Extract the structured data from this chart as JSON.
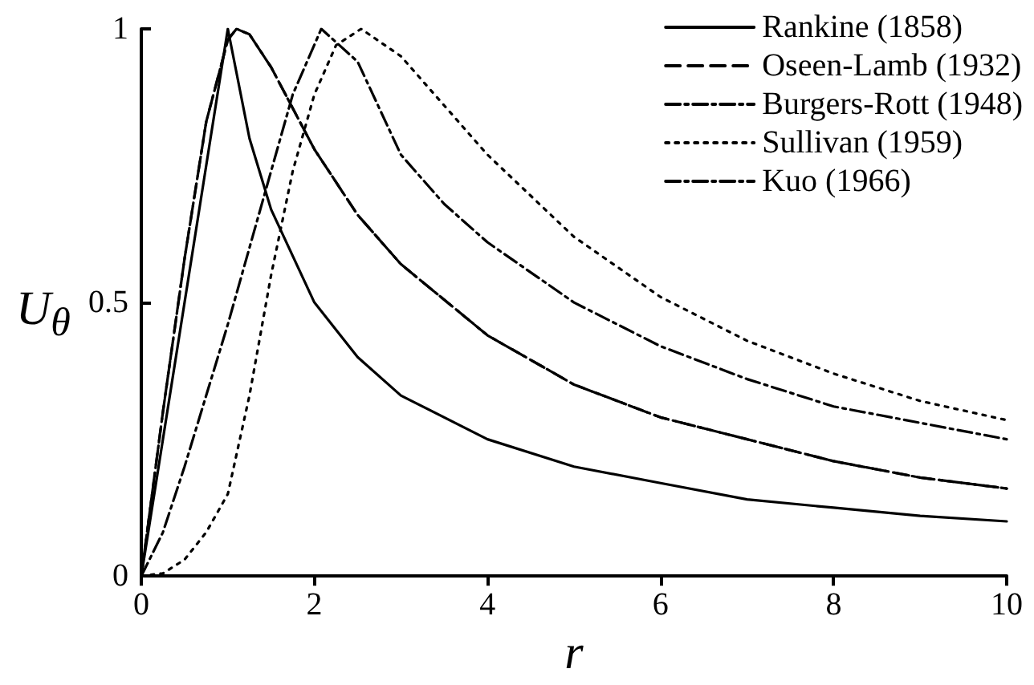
{
  "chart_data": {
    "type": "line",
    "xlabel": "r",
    "ylabel": "U$_{θ}$",
    "xlim": [
      0,
      10
    ],
    "xticks": [
      0,
      2,
      4,
      6,
      8,
      10
    ],
    "ylim": [
      0,
      1
    ],
    "yticks": [
      0,
      0.5,
      1
    ],
    "grid": false,
    "legend": "top right",
    "marker": "none",
    "series": [
      {
        "name": "Rankine (1858)",
        "color": "#000000",
        "line_style": "solid",
        "x": [
          0,
          1,
          1.25,
          1.5,
          2,
          2.5,
          3,
          4,
          5,
          6,
          7,
          8,
          9,
          10
        ],
        "values": [
          0,
          1,
          0.8,
          0.67,
          0.5,
          0.4,
          0.33,
          0.25,
          0.2,
          0.17,
          0.14,
          0.125,
          0.11,
          0.1
        ]
      },
      {
        "name": "Oseen-Lamb (1932)",
        "color": "#000000",
        "line_style": "dashed",
        "x": [
          0,
          0.25,
          0.5,
          0.75,
          1,
          1.1,
          1.25,
          1.5,
          2,
          2.5,
          3,
          4,
          5,
          6,
          7,
          8,
          9,
          10
        ],
        "values": [
          0,
          0.3,
          0.58,
          0.83,
          0.98,
          1,
          0.99,
          0.93,
          0.78,
          0.66,
          0.57,
          0.44,
          0.35,
          0.29,
          0.25,
          0.21,
          0.18,
          0.16
        ]
      },
      {
        "name": "Burgers-Rott (1948)",
        "color": "#000000",
        "line_style": "dashdot",
        "x": [
          0,
          0.25,
          0.5,
          0.75,
          1,
          1.1,
          1.25,
          1.5,
          2,
          2.5,
          3,
          4,
          5,
          6,
          7,
          8,
          9,
          10
        ],
        "values": [
          0,
          0.3,
          0.58,
          0.83,
          0.98,
          1,
          0.99,
          0.93,
          0.78,
          0.66,
          0.57,
          0.44,
          0.35,
          0.29,
          0.25,
          0.21,
          0.18,
          0.16
        ]
      },
      {
        "name": "Sullivan (1959)",
        "color": "#000000",
        "line_style": "dotted",
        "x": [
          0,
          0.25,
          0.5,
          0.75,
          1,
          1.25,
          1.5,
          1.75,
          2,
          2.25,
          2.54,
          3,
          3.5,
          4,
          5,
          6,
          7,
          8,
          9,
          10
        ],
        "values": [
          0,
          0.005,
          0.03,
          0.08,
          0.15,
          0.33,
          0.55,
          0.74,
          0.88,
          0.97,
          1,
          0.95,
          0.86,
          0.77,
          0.62,
          0.51,
          0.43,
          0.37,
          0.32,
          0.285
        ]
      },
      {
        "name": "Kuo (1966)",
        "color": "#000000",
        "line_style": "dashdot",
        "x": [
          0,
          0.25,
          0.5,
          0.75,
          1,
          1.25,
          1.5,
          1.75,
          2.08,
          2.5,
          3,
          3.5,
          4,
          5,
          6,
          7,
          8,
          9,
          10
        ],
        "values": [
          0,
          0.08,
          0.2,
          0.33,
          0.46,
          0.6,
          0.74,
          0.88,
          1,
          0.94,
          0.77,
          0.68,
          0.61,
          0.5,
          0.42,
          0.36,
          0.31,
          0.28,
          0.25
        ]
      }
    ]
  }
}
